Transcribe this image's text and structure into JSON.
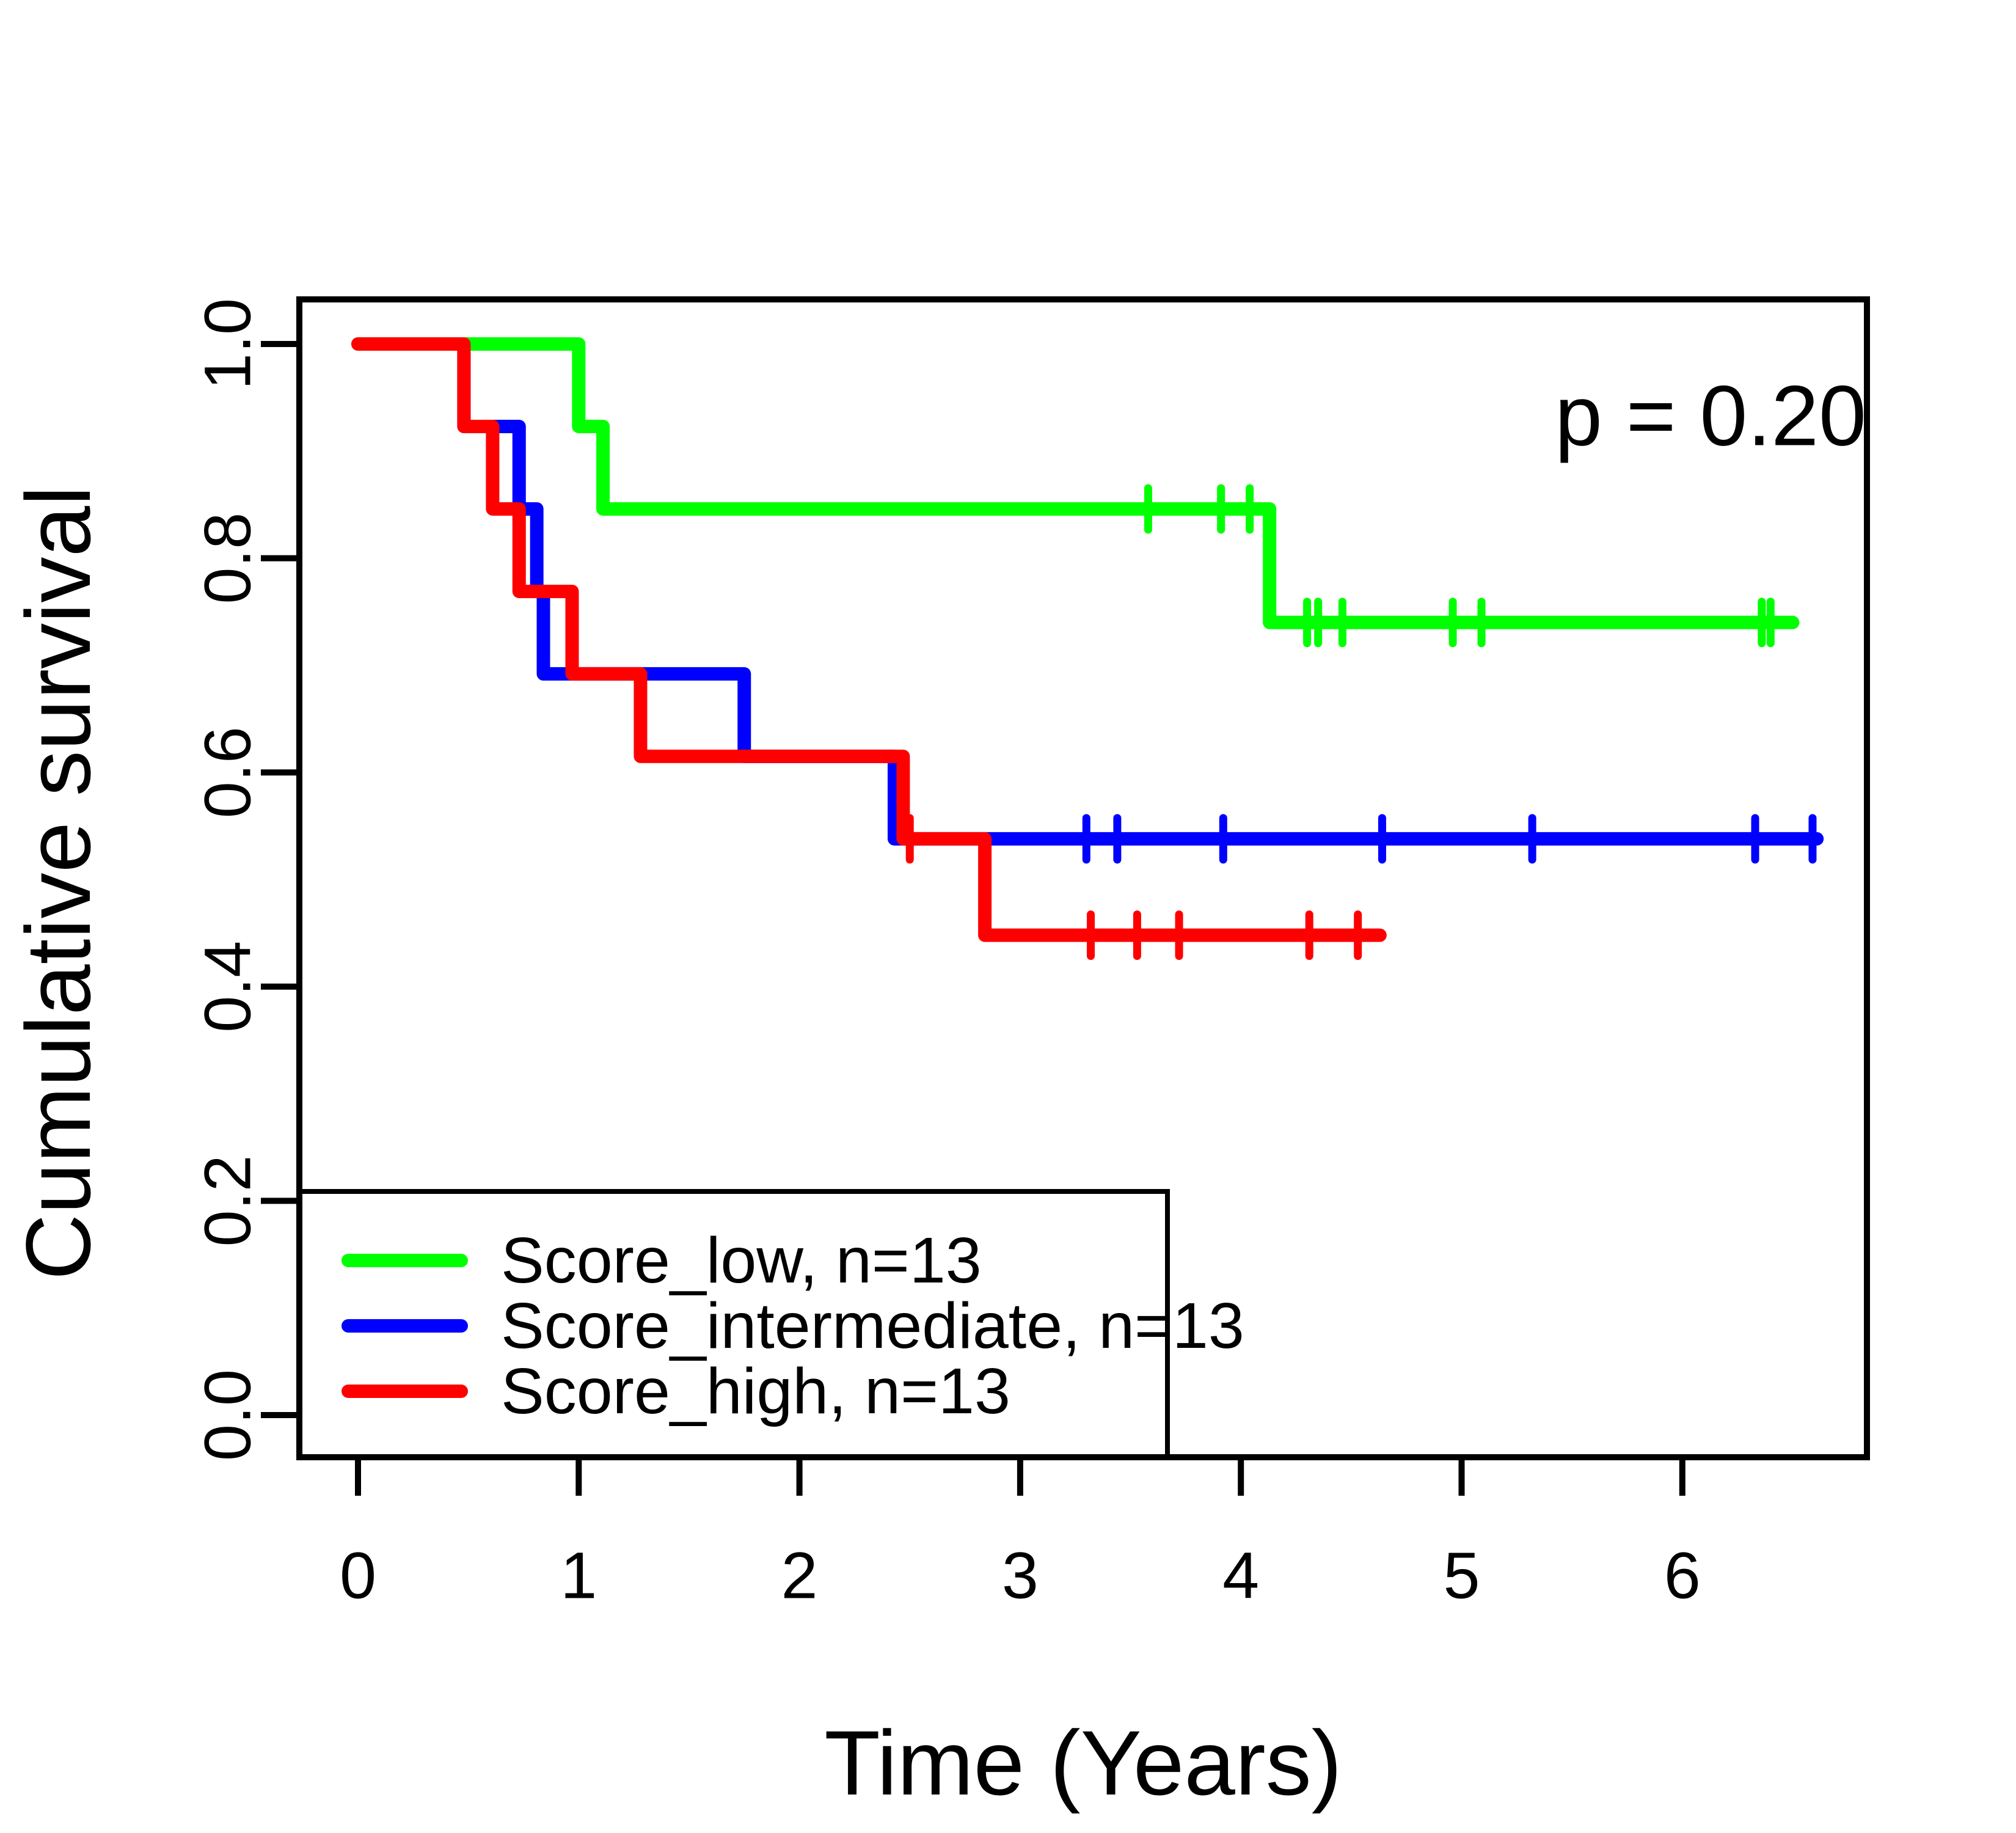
{
  "chart_data": {
    "type": "line",
    "subtype": "kaplan-meier-step-survival",
    "title": "",
    "xlabel": "Time (Years)",
    "ylabel": "Cumulative survival",
    "annotation": "p = 0.20",
    "x_ticks": [
      "0",
      "1",
      "2",
      "3",
      "4",
      "5",
      "6"
    ],
    "x_tick_values": [
      0,
      1,
      2,
      3,
      4,
      5,
      6
    ],
    "y_ticks": [
      "0.0",
      "0.2",
      "0.4",
      "0.6",
      "0.8",
      "1.0"
    ],
    "y_tick_values": [
      0.0,
      0.2,
      0.4,
      0.6,
      0.8,
      1.0
    ],
    "xlim": [
      0,
      6.85
    ],
    "ylim": [
      0,
      1
    ],
    "grid": false,
    "legend_position": "bottom-left",
    "series": [
      {
        "name": "Score_intermediate, n=13",
        "color": "#0000ff",
        "steps": [
          [
            0,
            1.0
          ],
          [
            0.48,
            0.923
          ],
          [
            0.73,
            0.846
          ],
          [
            0.81,
            0.769
          ],
          [
            0.84,
            0.692
          ],
          [
            1.75,
            0.615
          ],
          [
            2.43,
            0.538
          ]
        ],
        "end_time": 6.61,
        "censor_times": [
          3.3,
          3.44,
          3.92,
          4.64,
          5.32,
          6.33,
          6.59
        ]
      },
      {
        "name": "Score_low, n=13",
        "color": "#00ff00",
        "steps": [
          [
            0,
            1.0
          ],
          [
            1.0,
            0.923
          ],
          [
            1.11,
            0.846
          ],
          [
            4.13,
            0.74
          ]
        ],
        "end_time": 6.5,
        "censor_times": [
          3.58,
          3.91,
          4.04,
          4.3,
          4.35,
          4.46,
          4.96,
          5.09,
          6.36,
          6.4
        ]
      },
      {
        "name": "Score_high, n=13",
        "color": "#ff0000",
        "steps": [
          [
            0,
            1.0
          ],
          [
            0.48,
            0.923
          ],
          [
            0.61,
            0.846
          ],
          [
            0.73,
            0.769
          ],
          [
            0.97,
            0.692
          ],
          [
            1.28,
            0.615
          ],
          [
            2.47,
            0.538
          ],
          [
            2.84,
            0.448
          ]
        ],
        "end_time": 4.63,
        "censor_times": [
          2.5,
          3.32,
          3.53,
          3.72,
          4.31,
          4.53
        ]
      }
    ],
    "legend": {
      "entries": [
        {
          "label": "Score_low, n=13",
          "color": "#00ff00"
        },
        {
          "label": "Score_intermediate, n=13",
          "color": "#0000ff"
        },
        {
          "label": "Score_high, n=13",
          "color": "#ff0000"
        }
      ]
    }
  }
}
